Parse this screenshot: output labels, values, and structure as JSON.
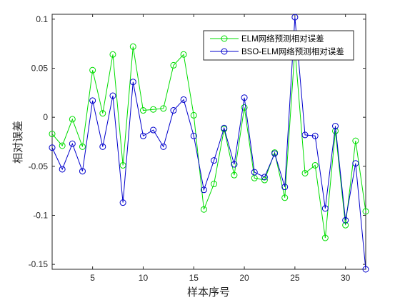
{
  "chart_data": {
    "type": "line",
    "title": "",
    "xlabel": "样本序号",
    "ylabel": "相对误差",
    "xlim": [
      1,
      32
    ],
    "ylim": [
      -0.155,
      0.105
    ],
    "xticks": [
      5,
      10,
      15,
      20,
      25,
      30
    ],
    "yticks": [
      0.1,
      0.05,
      0,
      -0.05,
      -0.1,
      -0.15
    ],
    "ytick_labels": [
      "0.1",
      "0.05",
      "0",
      "-0.05",
      "-0.1",
      "-0.15"
    ],
    "grid": false,
    "legend_position": "top-right",
    "x": [
      1,
      2,
      3,
      4,
      5,
      6,
      7,
      8,
      9,
      10,
      11,
      12,
      13,
      14,
      15,
      16,
      17,
      18,
      19,
      20,
      21,
      22,
      23,
      24,
      25,
      26,
      27,
      28,
      29,
      30,
      31,
      32
    ],
    "series": [
      {
        "name": "ELM网络预测相对误差",
        "color": "#00dd00",
        "marker": "circle",
        "values": [
          -0.017,
          -0.029,
          -0.002,
          -0.03,
          0.048,
          0.004,
          0.064,
          -0.049,
          0.072,
          0.007,
          0.008,
          0.009,
          0.053,
          0.064,
          0.002,
          -0.094,
          -0.068,
          -0.012,
          -0.059,
          0.01,
          -0.062,
          -0.064,
          -0.036,
          -0.082,
          0.07,
          -0.057,
          -0.049,
          -0.123,
          -0.014,
          -0.11,
          -0.024,
          -0.096
        ]
      },
      {
        "name": "BSO-ELM网络预测相对误差",
        "color": "#0000cc",
        "marker": "circle",
        "values": [
          -0.031,
          -0.053,
          -0.027,
          -0.055,
          0.017,
          -0.03,
          0.022,
          -0.087,
          0.036,
          -0.019,
          -0.013,
          -0.03,
          0.007,
          0.018,
          -0.019,
          -0.074,
          -0.044,
          -0.011,
          -0.048,
          0.02,
          -0.056,
          -0.061,
          -0.037,
          -0.071,
          0.102,
          -0.018,
          -0.019,
          -0.093,
          -0.009,
          -0.105,
          -0.047,
          -0.155
        ]
      }
    ]
  }
}
